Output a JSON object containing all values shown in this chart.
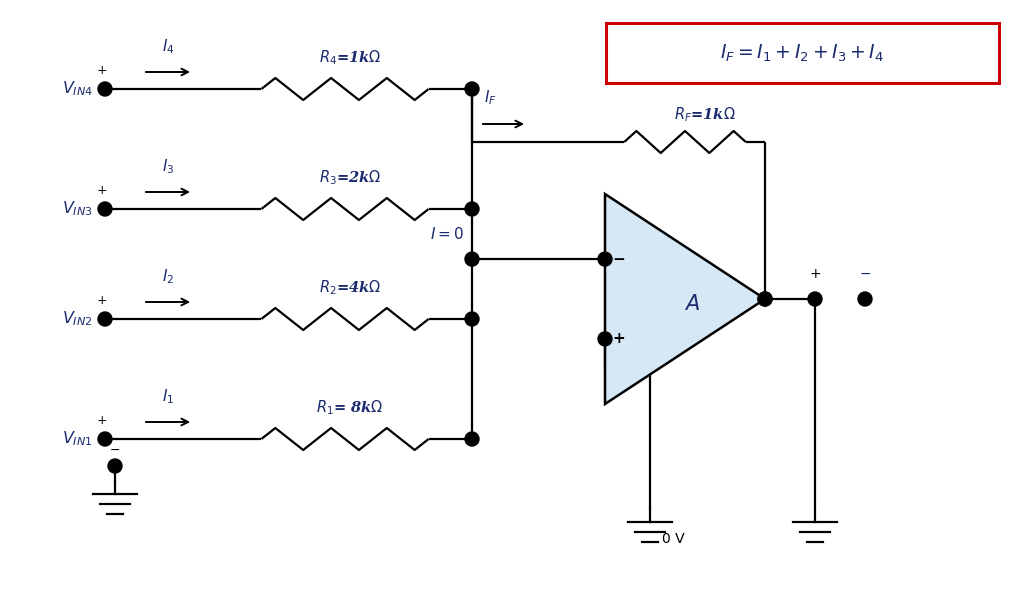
{
  "bg_color": "#ffffff",
  "wire_color": "#000000",
  "resistor_color": "#000000",
  "opamp_fill": "#d6e8f5",
  "opamp_edge": "#000000",
  "dot_color": "#000000",
  "text_color": "#1a2a6e",
  "formula_box_color": "#cc0000",
  "formula_text_color": "#1a2a6e",
  "ground_color": "#000000",
  "vin_labels": [
    "$V_{IN4}$",
    "$V_{IN3}$",
    "$V_{IN2}$",
    "$V_{IN1}$"
  ],
  "current_labels": [
    "$I_4$",
    "$I_3$",
    "$I_2$",
    "$I_1$"
  ],
  "resistor_labels": [
    "$R_4$=1k$\\Omega$",
    "$R_3$=2k$\\Omega$",
    "$R_2$=4k$\\Omega$",
    "$R_1$= 8k$\\Omega$"
  ],
  "formula": "$I_F = I_1 + I_2 + I_3 + I_4$",
  "fig_width": 10.24,
  "fig_height": 6.04,
  "dpi": 100
}
